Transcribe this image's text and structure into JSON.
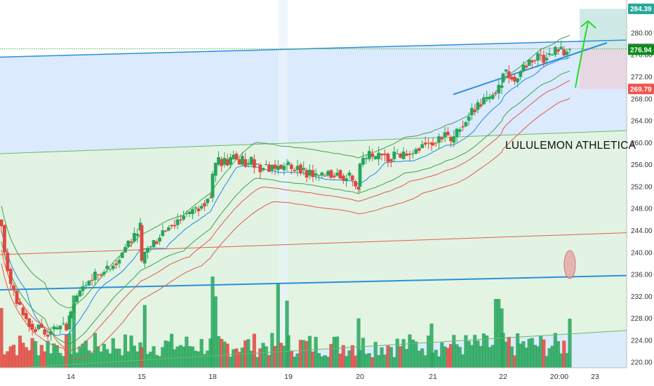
{
  "chart_data": {
    "type": "candlestick",
    "title": "",
    "annotation_text": "LULULEMON ATHLETICA",
    "x_ticks": [
      "14",
      "15",
      "18",
      "19",
      "20",
      "21",
      "22",
      "20:00",
      "23"
    ],
    "y_ticks": [
      "220.00",
      "224.00",
      "228.00",
      "232.00",
      "236.00",
      "240.00",
      "244.00",
      "248.00",
      "252.00",
      "256.00",
      "260.00",
      "264.00",
      "268.00",
      "272.00",
      "276.00",
      "280.00"
    ],
    "ylim": [
      219,
      286
    ],
    "price_tags": [
      {
        "label": "284.39",
        "value": 284.39,
        "color": "#26a69a"
      },
      {
        "label": "277.09",
        "value": 277.09,
        "color": "#787b86"
      },
      {
        "label": "276.94",
        "value": 276.94,
        "color": "#0b8a1a"
      },
      {
        "label": "269.79",
        "value": 269.79,
        "color": "#ef5350"
      }
    ],
    "colors": {
      "up": "#26a65b",
      "down": "#e2473f",
      "channel": "#2b8fd8",
      "bands": "#4caf50",
      "ma_lower": "#e05a4a"
    },
    "sessions": [
      "14",
      "15",
      "18",
      "19",
      "20",
      "21",
      "22",
      "23"
    ]
  }
}
